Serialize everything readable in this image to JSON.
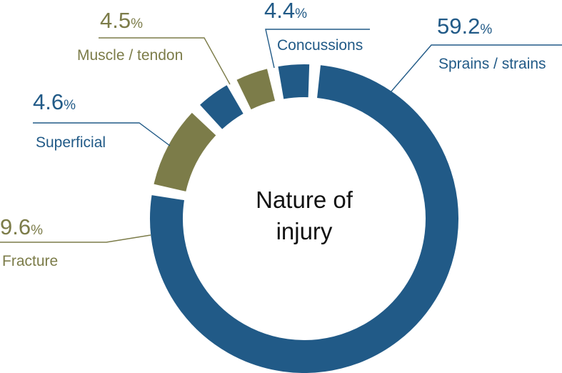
{
  "chart_data": {
    "type": "pie",
    "variant": "donut",
    "center_title": [
      "Nature of",
      "injury"
    ],
    "percent_symbol": "%",
    "slices": [
      {
        "key": "sprains",
        "label": "Sprains / strains",
        "value_text": "59.2",
        "value": 59.2,
        "color": "#215a87"
      },
      {
        "key": "fracture",
        "label": "Fracture",
        "value_text": "9.6",
        "value": 9.6,
        "color": "#7c7c49"
      },
      {
        "key": "superficial",
        "label": "Superficial",
        "value_text": "4.6",
        "value": 4.6,
        "color": "#215a87"
      },
      {
        "key": "muscle",
        "label": "Muscle / tendon",
        "value_text": "4.5",
        "value": 4.5,
        "color": "#7c7c49"
      },
      {
        "key": "concussions",
        "label": "Concussions",
        "value_text": "4.4",
        "value": 4.4,
        "color": "#215a87"
      }
    ]
  }
}
